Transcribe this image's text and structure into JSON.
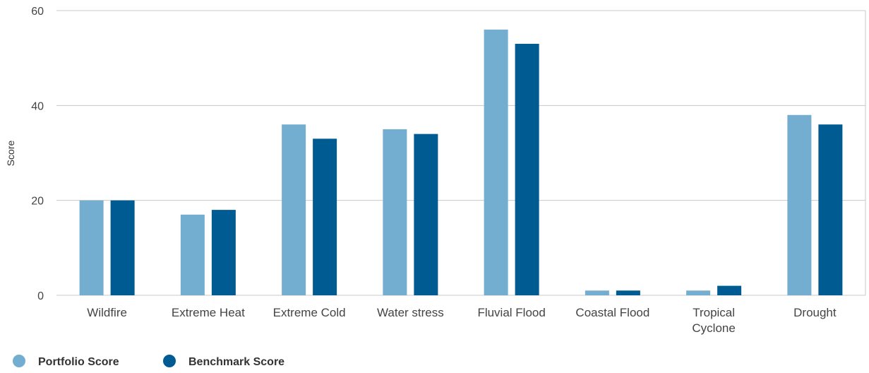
{
  "chart_data": {
    "type": "bar",
    "ylabel": "Score",
    "xlabel": "",
    "ylim": [
      0,
      60
    ],
    "yticks": [
      0,
      20,
      40,
      60
    ],
    "grid": true,
    "legend_placement": "bottom-left",
    "categories": [
      "Wildfire",
      "Extreme Heat",
      "Extreme Cold",
      "Water stress",
      "Fluvial Flood",
      "Coastal Flood",
      "Tropical Cyclone",
      "Drought"
    ],
    "category_label_lines": [
      [
        "Wildfire"
      ],
      [
        "Extreme Heat"
      ],
      [
        "Extreme Cold"
      ],
      [
        "Water stress"
      ],
      [
        "Fluvial Flood"
      ],
      [
        "Coastal Flood"
      ],
      [
        "Tropical",
        "Cyclone"
      ],
      [
        "Drought"
      ]
    ],
    "series": [
      {
        "name": "Portfolio Score",
        "color": "#73aed0",
        "values": [
          20,
          17,
          36,
          35,
          56,
          1,
          1,
          38
        ]
      },
      {
        "name": "Benchmark Score",
        "color": "#005b93",
        "values": [
          20,
          18,
          33,
          34,
          53,
          1,
          2,
          36
        ]
      }
    ]
  }
}
